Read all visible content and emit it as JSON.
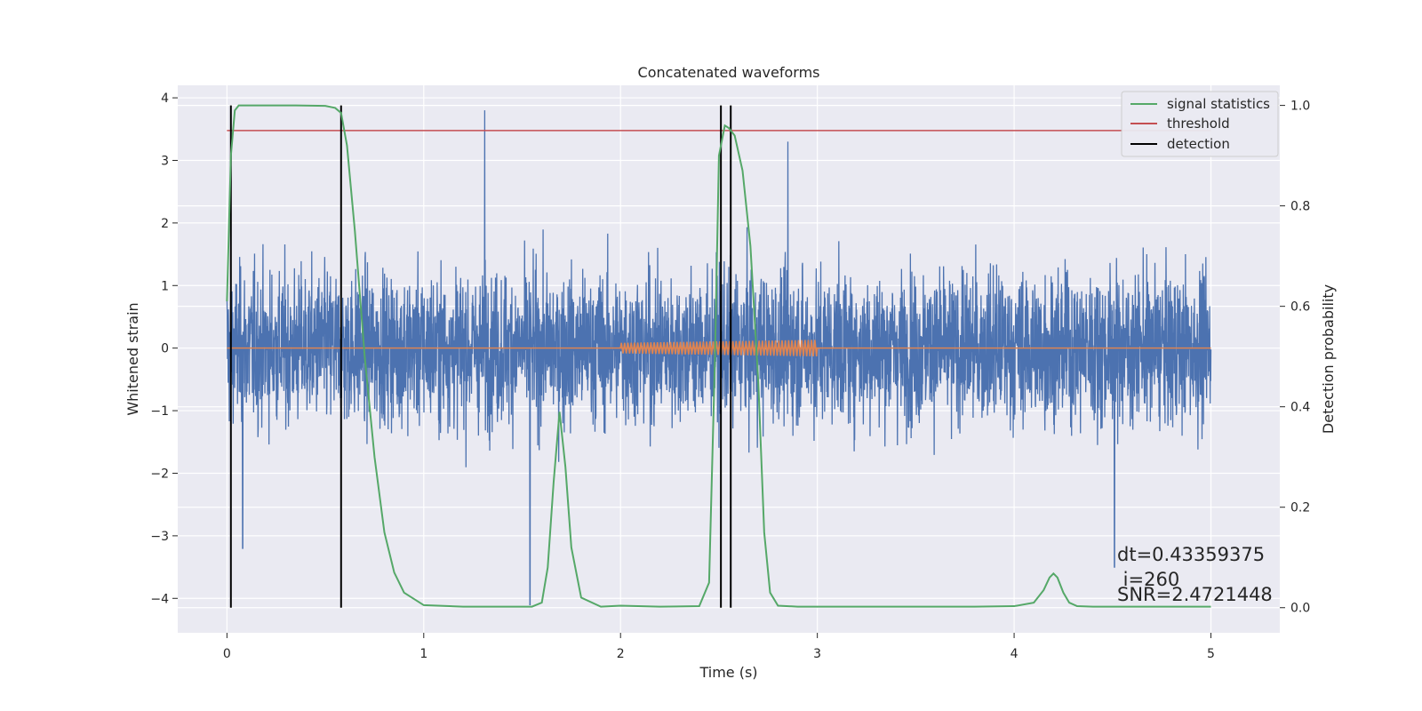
{
  "chart_data": {
    "type": "line",
    "title": "Concatenated waveforms",
    "xlabel": "Time (s)",
    "ylabel": "Whitened strain",
    "ylabel_right": "Detection probability",
    "xlim": [
      -0.25,
      5.35
    ],
    "ylim": [
      -4.55,
      4.2
    ],
    "ylim_right": [
      -0.05,
      1.04
    ],
    "xticks": [
      0,
      1,
      2,
      3,
      4,
      5
    ],
    "yticks": [
      -4,
      -3,
      -2,
      -1,
      0,
      1,
      2,
      3,
      4
    ],
    "yticks_right": [
      0.0,
      0.2,
      0.4,
      0.6,
      0.8,
      1.0
    ],
    "grid": true,
    "legend_position": "top-right",
    "legend": [
      {
        "label": "signal statistics",
        "color": "#55a868"
      },
      {
        "label": "threshold",
        "color": "#c44e52"
      },
      {
        "label": "detection",
        "color": "#000000"
      }
    ],
    "colors": {
      "strain": "#4c72b0",
      "injection": "#dd8452",
      "statistic": "#55a868",
      "threshold": "#c44e52",
      "detection": "#000000",
      "background": "#eaeaf2"
    },
    "strain_series": {
      "color": "#4c72b0",
      "x_range": [
        0,
        5
      ],
      "approx_envelope": [
        -2.6,
        2.9
      ],
      "notable_peaks": [
        {
          "x": 1.31,
          "y": 3.8
        },
        {
          "x": 2.85,
          "y": 3.3
        },
        {
          "x": 1.54,
          "y": -4.1
        },
        {
          "x": 4.51,
          "y": -3.5
        },
        {
          "x": 0.08,
          "y": -3.2
        }
      ]
    },
    "injection_series": {
      "color": "#dd8452",
      "x_range": [
        2,
        3
      ],
      "amplitude": 0.12,
      "baseline": 0
    },
    "threshold": {
      "y": 0.95,
      "x_range": [
        0,
        5
      ]
    },
    "detections": [
      0.02,
      0.58,
      2.51,
      2.56
    ],
    "statistic_series": {
      "name": "signal statistics",
      "x": [
        0,
        0.02,
        0.04,
        0.06,
        0.1,
        0.2,
        0.35,
        0.5,
        0.55,
        0.58,
        0.61,
        0.65,
        0.7,
        0.75,
        0.8,
        0.85,
        0.9,
        1.0,
        1.2,
        1.4,
        1.55,
        1.6,
        1.63,
        1.66,
        1.69,
        1.72,
        1.75,
        1.8,
        1.9,
        2.0,
        2.2,
        2.4,
        2.45,
        2.48,
        2.5,
        2.53,
        2.55,
        2.58,
        2.62,
        2.66,
        2.7,
        2.73,
        2.76,
        2.8,
        2.9,
        3.0,
        3.2,
        3.4,
        3.6,
        3.8,
        4.0,
        4.1,
        4.15,
        4.18,
        4.2,
        4.22,
        4.25,
        4.28,
        4.32,
        4.4,
        4.6,
        4.8,
        5.0
      ],
      "y": [
        0.61,
        0.9,
        0.99,
        1.0,
        1.0,
        1.0,
        1.0,
        0.999,
        0.995,
        0.985,
        0.92,
        0.75,
        0.5,
        0.3,
        0.15,
        0.07,
        0.03,
        0.005,
        0.002,
        0.002,
        0.002,
        0.01,
        0.08,
        0.25,
        0.39,
        0.28,
        0.12,
        0.02,
        0.002,
        0.004,
        0.002,
        0.003,
        0.05,
        0.5,
        0.9,
        0.96,
        0.955,
        0.94,
        0.87,
        0.72,
        0.45,
        0.15,
        0.03,
        0.004,
        0.002,
        0.002,
        0.002,
        0.002,
        0.002,
        0.002,
        0.003,
        0.01,
        0.035,
        0.06,
        0.068,
        0.06,
        0.03,
        0.01,
        0.003,
        0.002,
        0.002,
        0.002,
        0.002
      ]
    },
    "annotation": {
      "dt": "dt=0.43359375",
      "i": " i=260",
      "snr": "SNR=2.4721448"
    }
  }
}
